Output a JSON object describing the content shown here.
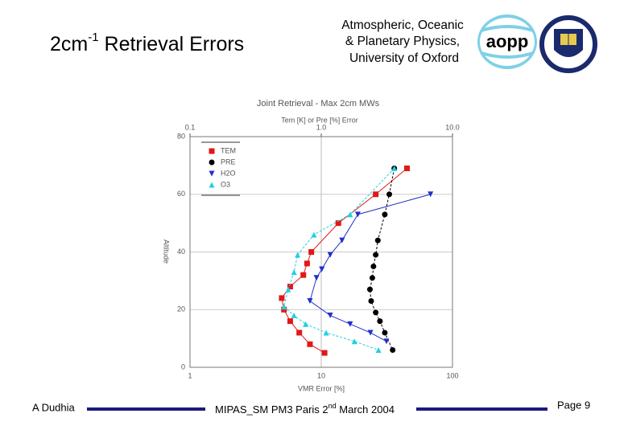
{
  "slide": {
    "title": "2cm",
    "title_sup": "-1",
    "title_rest": " Retrieval Errors",
    "org_lines": [
      "Atmospheric, Oceanic",
      "& Planetary Physics,",
      "University of Oxford"
    ],
    "logo_text": "aopp",
    "author": "A Dudhia",
    "meeting": "MIPAS_SM PM3 Paris 2",
    "meeting_sup": "nd",
    "meeting_rest": " March 2004",
    "page": "Page 9"
  },
  "chart_data": {
    "type": "line",
    "title": "Joint Retrieval - Max 2cm MWs",
    "x2_label": "Tem [K] or Pre [%] Error",
    "x_label": "VMR Error [%]",
    "y_label": "Altitude",
    "log_x": true,
    "xlim": [
      1,
      100
    ],
    "xticks": [
      1,
      10,
      100
    ],
    "x2lim": [
      0.1,
      10
    ],
    "x2ticks": [
      0.1,
      {
        "value": 1,
        "label": "1.0"
      },
      {
        "value": 10,
        "label": "10.0"
      }
    ],
    "ylim": [
      0,
      80
    ],
    "yticks": [
      0,
      20,
      40,
      60,
      80
    ],
    "grid": true,
    "legend": "upper-left",
    "series": [
      {
        "name": "TEM",
        "color": "#e01818",
        "marker": "square",
        "axis": "x2",
        "altitude": [
          69,
          60,
          50,
          40,
          36,
          32,
          28,
          24,
          20,
          16,
          12,
          8,
          5
        ],
        "values": [
          4.5,
          2.6,
          1.35,
          0.84,
          0.78,
          0.73,
          0.58,
          0.5,
          0.52,
          0.58,
          0.68,
          0.82,
          1.06
        ]
      },
      {
        "name": "PRE",
        "color": "#000000",
        "marker": "circle",
        "axis": "x2",
        "altitude": [
          69,
          60,
          53,
          44,
          39,
          35,
          31,
          27,
          23,
          19,
          16,
          12,
          6
        ],
        "values": [
          3.6,
          3.3,
          3.05,
          2.7,
          2.6,
          2.5,
          2.45,
          2.35,
          2.4,
          2.6,
          2.8,
          3.05,
          3.5
        ]
      },
      {
        "name": "H2O",
        "color": "#2030c8",
        "marker": "triangle-down",
        "altitude": [
          60,
          53,
          44,
          39,
          34,
          31,
          23,
          18,
          15,
          12,
          9
        ],
        "values": [
          68,
          19,
          14.4,
          11.7,
          10.1,
          9.2,
          8.2,
          11.7,
          16.6,
          23.7,
          31.4
        ]
      },
      {
        "name": "O3",
        "color": "#20d0e0",
        "marker": "triangle-up",
        "altitude": [
          69,
          53,
          46,
          39,
          33,
          27,
          21,
          18,
          15,
          12,
          9,
          6
        ],
        "values": [
          36,
          16.6,
          8.8,
          6.6,
          6.2,
          5.6,
          5.2,
          6.2,
          7.6,
          10.9,
          17.9,
          27.3
        ]
      }
    ]
  }
}
